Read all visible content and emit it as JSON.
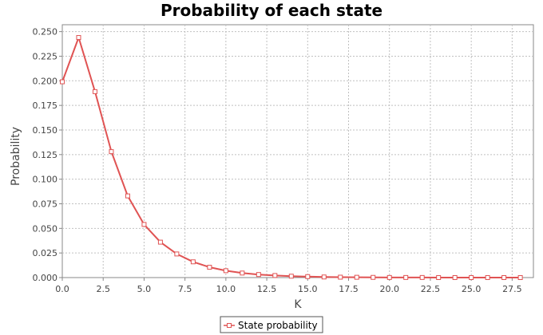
{
  "chart_data": {
    "type": "line",
    "title": "Probability of each state",
    "xlabel": "K",
    "ylabel": "Probability",
    "xlim": [
      0,
      28.8
    ],
    "ylim": [
      0,
      0.257
    ],
    "x_ticks": [
      0,
      2.5,
      5,
      7.5,
      10,
      12.5,
      15,
      17.5,
      20,
      22.5,
      25,
      27.5
    ],
    "x_tick_labels": [
      "0.0",
      "2.5",
      "5.0",
      "7.5",
      "10.0",
      "12.5",
      "15.0",
      "17.5",
      "20.0",
      "22.5",
      "25.0",
      "27.5"
    ],
    "y_ticks": [
      0,
      0.025,
      0.05,
      0.075,
      0.1,
      0.125,
      0.15,
      0.175,
      0.2,
      0.225,
      0.25
    ],
    "y_tick_labels": [
      "0.000",
      "0.025",
      "0.050",
      "0.075",
      "0.100",
      "0.125",
      "0.150",
      "0.175",
      "0.200",
      "0.225",
      "0.250"
    ],
    "grid": true,
    "legend_position": "bottom-center",
    "series": [
      {
        "name": "State probability",
        "color": "#e05353",
        "x": [
          0,
          1,
          2,
          3,
          4,
          5,
          6,
          7,
          8,
          9,
          10,
          11,
          12,
          13,
          14,
          15,
          16,
          17,
          18,
          19,
          20,
          21,
          22,
          23,
          24,
          25,
          26,
          27,
          28
        ],
        "y": [
          0.199,
          0.244,
          0.189,
          0.128,
          0.083,
          0.054,
          0.036,
          0.024,
          0.016,
          0.0105,
          0.007,
          0.0046,
          0.0031,
          0.0021,
          0.0014,
          0.001,
          0.0006,
          0.0004,
          0.0003,
          0.0002,
          0.0001,
          0.0001,
          0.0001,
          0.0,
          0.0,
          0.0,
          0.0,
          0.0,
          0.0
        ]
      }
    ]
  }
}
